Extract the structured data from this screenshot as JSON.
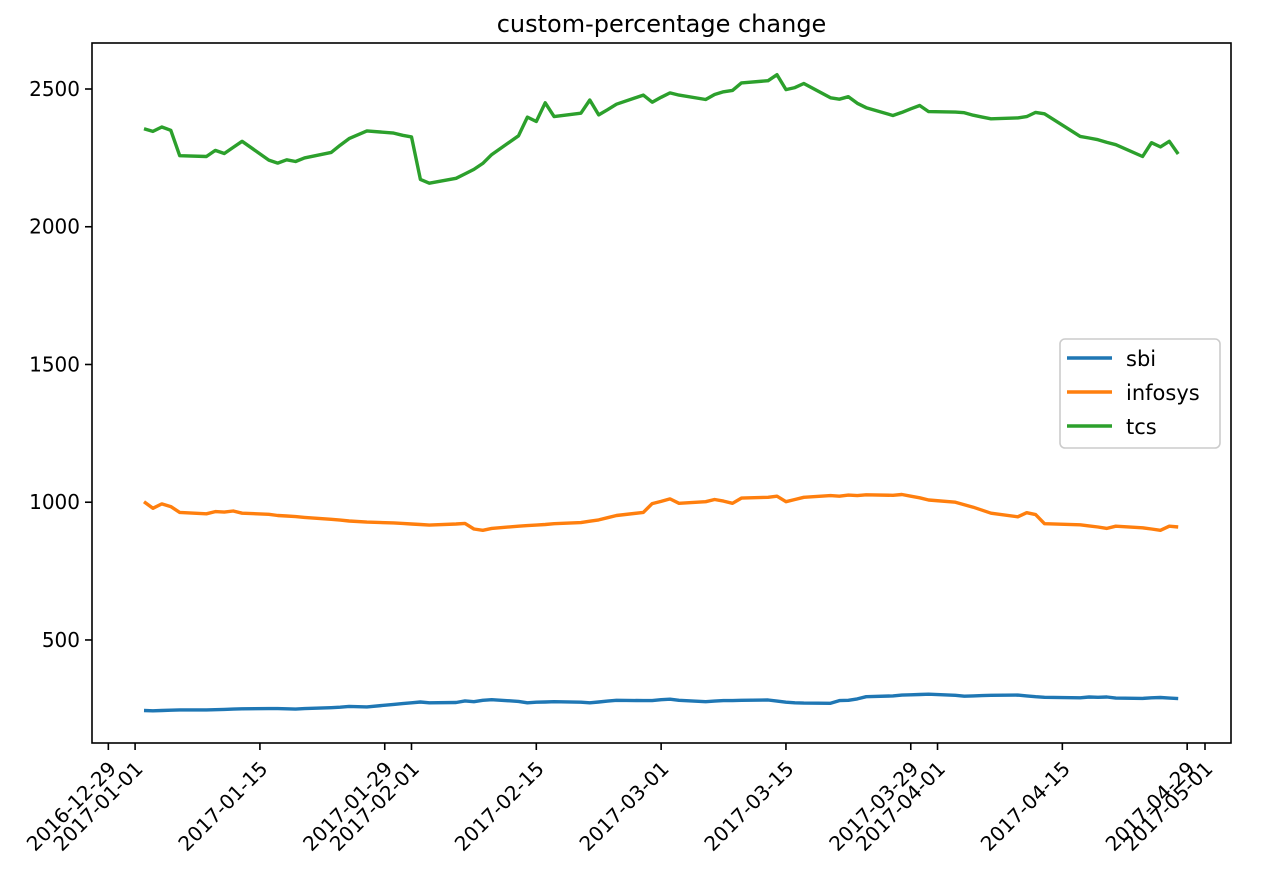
{
  "figure": {
    "background": "#ffffff"
  },
  "chart_data": {
    "type": "line",
    "title": "custom-percentage change",
    "xlabel": "",
    "ylabel": "",
    "grid": false,
    "legend": {
      "position": "center right",
      "entries": [
        "sbi",
        "infosys",
        "tcs"
      ]
    },
    "xlim": [
      "2016-12-27T04:00:00Z",
      "2017-05-03T22:00:00Z"
    ],
    "ylim": [
      126,
      2667
    ],
    "x_ticks": [
      {
        "date": "2016-12-29",
        "label": "2016-12-29"
      },
      {
        "date": "2017-01-01",
        "label": "2017-01-01"
      },
      {
        "date": "2017-01-15",
        "label": "2017-01-15"
      },
      {
        "date": "2017-01-29",
        "label": "2017-01-29"
      },
      {
        "date": "2017-02-01",
        "label": "2017-02-01"
      },
      {
        "date": "2017-02-15",
        "label": "2017-02-15"
      },
      {
        "date": "2017-03-01",
        "label": "2017-03-01"
      },
      {
        "date": "2017-03-15",
        "label": "2017-03-15"
      },
      {
        "date": "2017-03-29",
        "label": "2017-03-29"
      },
      {
        "date": "2017-04-01",
        "label": "2017-04-01"
      },
      {
        "date": "2017-04-15",
        "label": "2017-04-15"
      },
      {
        "date": "2017-04-29",
        "label": "2017-04-29"
      },
      {
        "date": "2017-05-01",
        "label": "2017-05-01"
      }
    ],
    "y_ticks": [
      500,
      1000,
      1500,
      2000,
      2500
    ],
    "series": [
      {
        "name": "sbi",
        "color": "#1f77b4",
        "points": [
          [
            "2017-01-02",
            244
          ],
          [
            "2017-01-03",
            243
          ],
          [
            "2017-01-04",
            244
          ],
          [
            "2017-01-05",
            245
          ],
          [
            "2017-01-06",
            246
          ],
          [
            "2017-01-09",
            246
          ],
          [
            "2017-01-10",
            247
          ],
          [
            "2017-01-11",
            248
          ],
          [
            "2017-01-12",
            249
          ],
          [
            "2017-01-13",
            250
          ],
          [
            "2017-01-16",
            251
          ],
          [
            "2017-01-17",
            251
          ],
          [
            "2017-01-18",
            250
          ],
          [
            "2017-01-19",
            249
          ],
          [
            "2017-01-20",
            251
          ],
          [
            "2017-01-23",
            254
          ],
          [
            "2017-01-24",
            256
          ],
          [
            "2017-01-25",
            259
          ],
          [
            "2017-01-27",
            257
          ],
          [
            "2017-01-30",
            266
          ],
          [
            "2017-01-31",
            269
          ],
          [
            "2017-02-01",
            272
          ],
          [
            "2017-02-02",
            275
          ],
          [
            "2017-02-03",
            272
          ],
          [
            "2017-02-06",
            273
          ],
          [
            "2017-02-07",
            279
          ],
          [
            "2017-02-08",
            276
          ],
          [
            "2017-02-09",
            281
          ],
          [
            "2017-02-10",
            283
          ],
          [
            "2017-02-13",
            277
          ],
          [
            "2017-02-14",
            272
          ],
          [
            "2017-02-15",
            274
          ],
          [
            "2017-02-16",
            275
          ],
          [
            "2017-02-17",
            276
          ],
          [
            "2017-02-20",
            274
          ],
          [
            "2017-02-21",
            272
          ],
          [
            "2017-02-22",
            275
          ],
          [
            "2017-02-23",
            278
          ],
          [
            "2017-02-24",
            281
          ],
          [
            "2017-02-27",
            280
          ],
          [
            "2017-02-28",
            280
          ],
          [
            "2017-03-01",
            283
          ],
          [
            "2017-03-02",
            285
          ],
          [
            "2017-03-03",
            281
          ],
          [
            "2017-03-06",
            276
          ],
          [
            "2017-03-07",
            278
          ],
          [
            "2017-03-08",
            280
          ],
          [
            "2017-03-09",
            280
          ],
          [
            "2017-03-10",
            281
          ],
          [
            "2017-03-13",
            282
          ],
          [
            "2017-03-14",
            278
          ],
          [
            "2017-03-15",
            274
          ],
          [
            "2017-03-16",
            272
          ],
          [
            "2017-03-17",
            271
          ],
          [
            "2017-03-20",
            270
          ],
          [
            "2017-03-21",
            280
          ],
          [
            "2017-03-22",
            281
          ],
          [
            "2017-03-23",
            286
          ],
          [
            "2017-03-24",
            294
          ],
          [
            "2017-03-27",
            297
          ],
          [
            "2017-03-28",
            300
          ],
          [
            "2017-03-29",
            301
          ],
          [
            "2017-03-30",
            302
          ],
          [
            "2017-03-31",
            303
          ],
          [
            "2017-04-03",
            299
          ],
          [
            "2017-04-04",
            296
          ],
          [
            "2017-04-05",
            297
          ],
          [
            "2017-04-06",
            298
          ],
          [
            "2017-04-07",
            299
          ],
          [
            "2017-04-10",
            300
          ],
          [
            "2017-04-11",
            297
          ],
          [
            "2017-04-12",
            294
          ],
          [
            "2017-04-13",
            292
          ],
          [
            "2017-04-17",
            290
          ],
          [
            "2017-04-18",
            293
          ],
          [
            "2017-04-19",
            292
          ],
          [
            "2017-04-20",
            293
          ],
          [
            "2017-04-21",
            289
          ],
          [
            "2017-04-24",
            288
          ],
          [
            "2017-04-25",
            290
          ],
          [
            "2017-04-26",
            291
          ],
          [
            "2017-04-27",
            289
          ],
          [
            "2017-04-28",
            287
          ]
        ]
      },
      {
        "name": "infosys",
        "color": "#ff7f0e",
        "points": [
          [
            "2017-01-02",
            1002
          ],
          [
            "2017-01-03",
            978
          ],
          [
            "2017-01-04",
            994
          ],
          [
            "2017-01-05",
            984
          ],
          [
            "2017-01-06",
            963
          ],
          [
            "2017-01-09",
            958
          ],
          [
            "2017-01-10",
            966
          ],
          [
            "2017-01-11",
            964
          ],
          [
            "2017-01-12",
            968
          ],
          [
            "2017-01-13",
            960
          ],
          [
            "2017-01-16",
            956
          ],
          [
            "2017-01-17",
            952
          ],
          [
            "2017-01-18",
            950
          ],
          [
            "2017-01-19",
            948
          ],
          [
            "2017-01-20",
            945
          ],
          [
            "2017-01-23",
            938
          ],
          [
            "2017-01-24",
            935
          ],
          [
            "2017-01-25",
            932
          ],
          [
            "2017-01-27",
            928
          ],
          [
            "2017-01-30",
            925
          ],
          [
            "2017-01-31",
            923
          ],
          [
            "2017-02-01",
            921
          ],
          [
            "2017-02-02",
            919
          ],
          [
            "2017-02-03",
            917
          ],
          [
            "2017-02-06",
            921
          ],
          [
            "2017-02-07",
            923
          ],
          [
            "2017-02-08",
            903
          ],
          [
            "2017-02-09",
            898
          ],
          [
            "2017-02-10",
            905
          ],
          [
            "2017-02-13",
            913
          ],
          [
            "2017-02-14",
            915
          ],
          [
            "2017-02-15",
            917
          ],
          [
            "2017-02-16",
            919
          ],
          [
            "2017-02-17",
            922
          ],
          [
            "2017-02-20",
            926
          ],
          [
            "2017-02-21",
            931
          ],
          [
            "2017-02-22",
            936
          ],
          [
            "2017-02-23",
            944
          ],
          [
            "2017-02-24",
            952
          ],
          [
            "2017-02-27",
            963
          ],
          [
            "2017-02-28",
            995
          ],
          [
            "2017-03-01",
            1003
          ],
          [
            "2017-03-02",
            1012
          ],
          [
            "2017-03-03",
            996
          ],
          [
            "2017-03-06",
            1002
          ],
          [
            "2017-03-07",
            1010
          ],
          [
            "2017-03-08",
            1004
          ],
          [
            "2017-03-09",
            996
          ],
          [
            "2017-03-10",
            1015
          ],
          [
            "2017-03-13",
            1018
          ],
          [
            "2017-03-14",
            1022
          ],
          [
            "2017-03-15",
            1002
          ],
          [
            "2017-03-16",
            1010
          ],
          [
            "2017-03-17",
            1018
          ],
          [
            "2017-03-20",
            1024
          ],
          [
            "2017-03-21",
            1022
          ],
          [
            "2017-03-22",
            1026
          ],
          [
            "2017-03-23",
            1024
          ],
          [
            "2017-03-24",
            1027
          ],
          [
            "2017-03-27",
            1025
          ],
          [
            "2017-03-28",
            1028
          ],
          [
            "2017-03-29",
            1022
          ],
          [
            "2017-03-30",
            1016
          ],
          [
            "2017-03-31",
            1008
          ],
          [
            "2017-04-03",
            1000
          ],
          [
            "2017-04-04",
            991
          ],
          [
            "2017-04-05",
            982
          ],
          [
            "2017-04-06",
            971
          ],
          [
            "2017-04-07",
            960
          ],
          [
            "2017-04-10",
            947
          ],
          [
            "2017-04-11",
            962
          ],
          [
            "2017-04-12",
            955
          ],
          [
            "2017-04-13",
            922
          ],
          [
            "2017-04-17",
            918
          ],
          [
            "2017-04-18",
            914
          ],
          [
            "2017-04-19",
            910
          ],
          [
            "2017-04-20",
            905
          ],
          [
            "2017-04-21",
            913
          ],
          [
            "2017-04-24",
            907
          ],
          [
            "2017-04-25",
            903
          ],
          [
            "2017-04-26",
            898
          ],
          [
            "2017-04-27",
            913
          ],
          [
            "2017-04-28",
            910
          ]
        ]
      },
      {
        "name": "tcs",
        "color": "#2ca02c",
        "points": [
          [
            "2017-01-02",
            2356
          ],
          [
            "2017-01-03",
            2346
          ],
          [
            "2017-01-04",
            2362
          ],
          [
            "2017-01-05",
            2350
          ],
          [
            "2017-01-06",
            2258
          ],
          [
            "2017-01-09",
            2255
          ],
          [
            "2017-01-10",
            2277
          ],
          [
            "2017-01-11",
            2266
          ],
          [
            "2017-01-12",
            2288
          ],
          [
            "2017-01-13",
            2310
          ],
          [
            "2017-01-16",
            2242
          ],
          [
            "2017-01-17",
            2231
          ],
          [
            "2017-01-18",
            2243
          ],
          [
            "2017-01-19",
            2237
          ],
          [
            "2017-01-20",
            2250
          ],
          [
            "2017-01-23",
            2270
          ],
          [
            "2017-01-24",
            2296
          ],
          [
            "2017-01-25",
            2320
          ],
          [
            "2017-01-27",
            2348
          ],
          [
            "2017-01-30",
            2340
          ],
          [
            "2017-01-31",
            2332
          ],
          [
            "2017-02-01",
            2326
          ],
          [
            "2017-02-02",
            2172
          ],
          [
            "2017-02-03",
            2158
          ],
          [
            "2017-02-06",
            2176
          ],
          [
            "2017-02-07",
            2192
          ],
          [
            "2017-02-08",
            2208
          ],
          [
            "2017-02-09",
            2230
          ],
          [
            "2017-02-10",
            2262
          ],
          [
            "2017-02-13",
            2330
          ],
          [
            "2017-02-14",
            2398
          ],
          [
            "2017-02-15",
            2382
          ],
          [
            "2017-02-16",
            2450
          ],
          [
            "2017-02-17",
            2400
          ],
          [
            "2017-02-20",
            2412
          ],
          [
            "2017-02-21",
            2460
          ],
          [
            "2017-02-22",
            2406
          ],
          [
            "2017-02-23",
            2425
          ],
          [
            "2017-02-24",
            2445
          ],
          [
            "2017-02-27",
            2478
          ],
          [
            "2017-02-28",
            2452
          ],
          [
            "2017-03-01",
            2470
          ],
          [
            "2017-03-02",
            2486
          ],
          [
            "2017-03-03",
            2478
          ],
          [
            "2017-03-06",
            2462
          ],
          [
            "2017-03-07",
            2480
          ],
          [
            "2017-03-08",
            2490
          ],
          [
            "2017-03-09",
            2495
          ],
          [
            "2017-03-10",
            2522
          ],
          [
            "2017-03-13",
            2530
          ],
          [
            "2017-03-14",
            2552
          ],
          [
            "2017-03-15",
            2498
          ],
          [
            "2017-03-16",
            2505
          ],
          [
            "2017-03-17",
            2520
          ],
          [
            "2017-03-20",
            2468
          ],
          [
            "2017-03-21",
            2463
          ],
          [
            "2017-03-22",
            2472
          ],
          [
            "2017-03-23",
            2448
          ],
          [
            "2017-03-24",
            2432
          ],
          [
            "2017-03-27",
            2404
          ],
          [
            "2017-03-28",
            2415
          ],
          [
            "2017-03-29",
            2428
          ],
          [
            "2017-03-30",
            2440
          ],
          [
            "2017-03-31",
            2418
          ],
          [
            "2017-04-03",
            2416
          ],
          [
            "2017-04-04",
            2414
          ],
          [
            "2017-04-05",
            2405
          ],
          [
            "2017-04-06",
            2398
          ],
          [
            "2017-04-07",
            2392
          ],
          [
            "2017-04-10",
            2395
          ],
          [
            "2017-04-11",
            2400
          ],
          [
            "2017-04-12",
            2415
          ],
          [
            "2017-04-13",
            2410
          ],
          [
            "2017-04-17",
            2328
          ],
          [
            "2017-04-18",
            2322
          ],
          [
            "2017-04-19",
            2316
          ],
          [
            "2017-04-20",
            2306
          ],
          [
            "2017-04-21",
            2298
          ],
          [
            "2017-04-24",
            2255
          ],
          [
            "2017-04-25",
            2305
          ],
          [
            "2017-04-26",
            2290
          ],
          [
            "2017-04-27",
            2310
          ],
          [
            "2017-04-28",
            2264
          ]
        ]
      }
    ]
  }
}
